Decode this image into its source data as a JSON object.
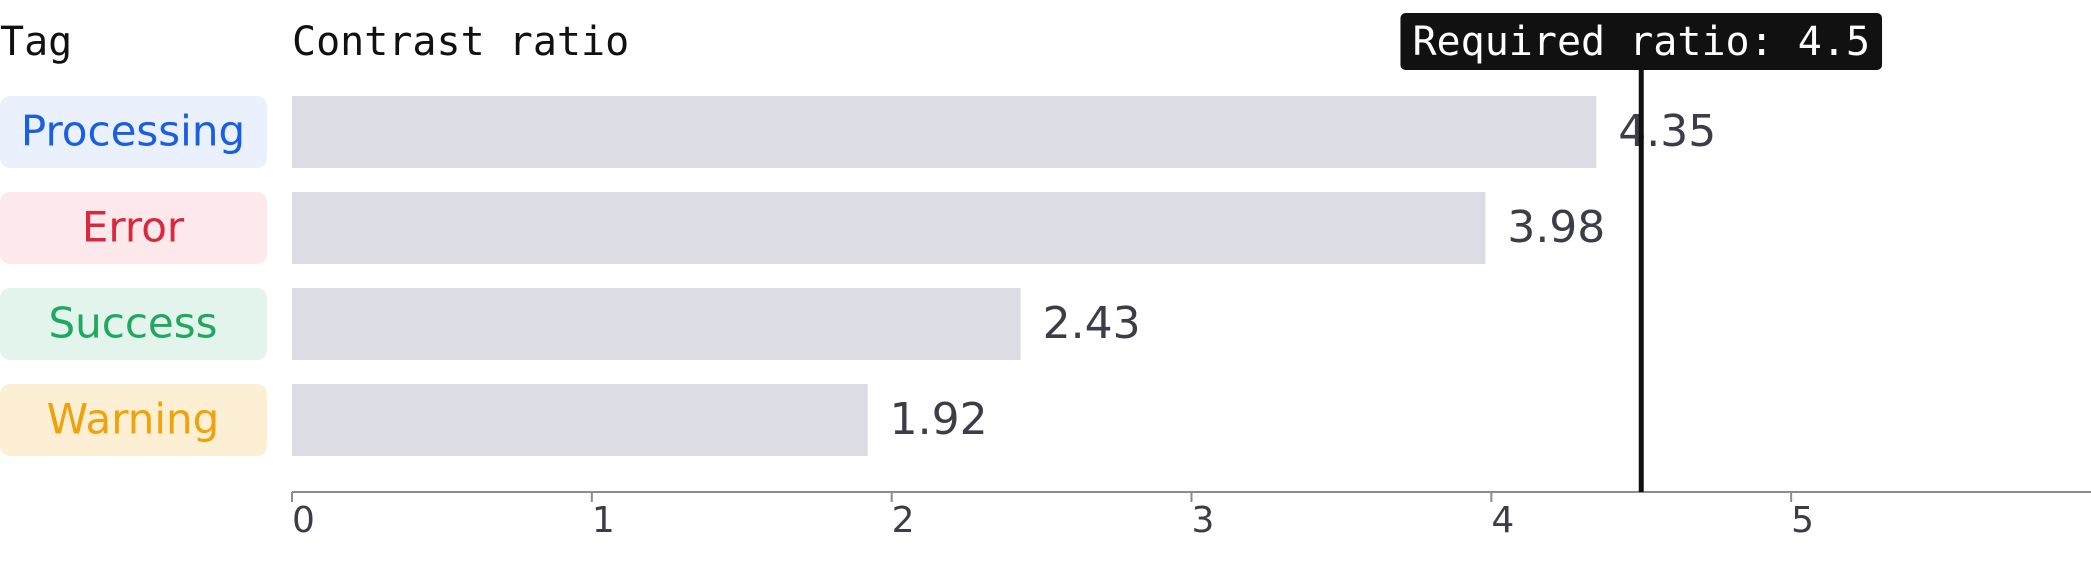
{
  "chart_data": {
    "type": "bar",
    "orientation": "horizontal",
    "category_header": "Tag",
    "value_header": "Contrast ratio",
    "categories": [
      "Processing",
      "Error",
      "Success",
      "Warning"
    ],
    "category_styles": [
      {
        "color": "#1a5fe0",
        "background": "#ebf0fd"
      },
      {
        "color": "#d9293f",
        "background": "#fde9ec"
      },
      {
        "color": "#1fa960",
        "background": "#e3f4ec"
      },
      {
        "color": "#f0a20a",
        "background": "#fdefd4"
      }
    ],
    "values": [
      4.35,
      3.98,
      2.43,
      1.92
    ],
    "color": "#dcdce4",
    "xlim": [
      0,
      6
    ],
    "xticks": [
      0,
      1,
      2,
      3,
      4,
      5
    ],
    "threshold": {
      "value": 4.5,
      "label": "Required ratio: 4.5"
    }
  }
}
